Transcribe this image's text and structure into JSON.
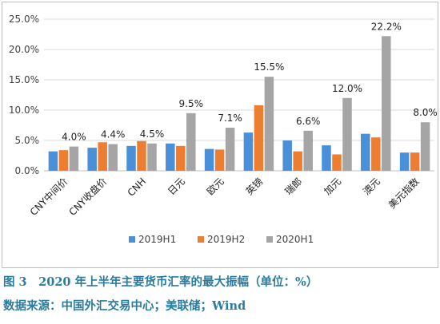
{
  "chart_data": {
    "type": "bar",
    "categories": [
      "CNY中间价",
      "CNY收盘价",
      "CNH",
      "日元",
      "欧元",
      "英镑",
      "瑞郎",
      "加元",
      "澳元",
      "美元指数"
    ],
    "series": [
      {
        "name": "2019H1",
        "color": "#4a90d9",
        "values": [
          3.2,
          3.8,
          4.1,
          4.5,
          3.6,
          6.3,
          5.0,
          4.2,
          6.1,
          3.0
        ]
      },
      {
        "name": "2019H2",
        "color": "#ed7d31",
        "values": [
          3.4,
          4.7,
          4.9,
          4.1,
          3.5,
          10.8,
          3.2,
          2.7,
          5.5,
          3.0
        ]
      },
      {
        "name": "2020H1",
        "color": "#a5a5a5",
        "values": [
          4.0,
          4.4,
          4.5,
          9.5,
          7.1,
          15.5,
          6.6,
          12.0,
          22.2,
          8.0
        ]
      }
    ],
    "data_labels": [
      "4.0%",
      "4.4%",
      "4.5%",
      "9.5%",
      "7.1%",
      "15.5%",
      "6.6%",
      "12.0%",
      "22.2%",
      "8.0%"
    ],
    "yticks": [
      "0.0%",
      "5.0%",
      "10.0%",
      "15.0%",
      "20.0%",
      "25.0%"
    ],
    "ylim": [
      0,
      25
    ],
    "legend_position": "bottom",
    "grid": "horizontal"
  },
  "caption": {
    "title": "图 3　2020 年上半年主要货币汇率的最大振幅（单位：%）",
    "source": "数据来源：中国外汇交易中心；美联储；Wind"
  }
}
